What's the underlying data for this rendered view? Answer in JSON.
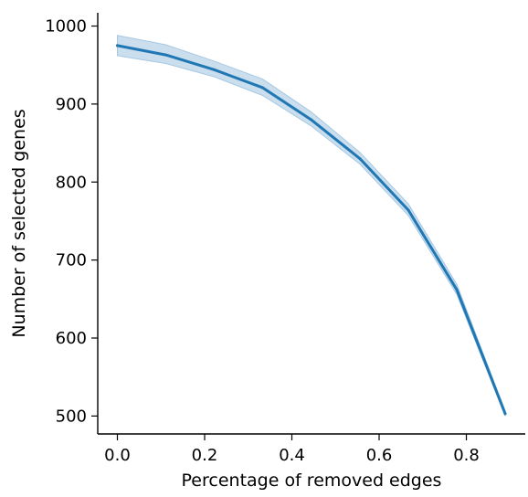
{
  "chart_data": {
    "type": "line",
    "title": "",
    "xlabel": "Percentage of removed edges",
    "ylabel": "Number of selected genes",
    "xlim": [
      -0.045,
      0.935
    ],
    "ylim": [
      477,
      1017
    ],
    "x_ticks": [
      0.0,
      0.2,
      0.4,
      0.6,
      0.8
    ],
    "x_tick_labels": [
      "0.0",
      "0.2",
      "0.4",
      "0.6",
      "0.8"
    ],
    "y_ticks": [
      500,
      600,
      700,
      800,
      900,
      1000
    ],
    "y_tick_labels": [
      "500",
      "600",
      "700",
      "800",
      "900",
      "1000"
    ],
    "grid": false,
    "legend": "none",
    "series": [
      {
        "x": [
          0.0,
          0.111,
          0.222,
          0.333,
          0.444,
          0.556,
          0.667,
          0.778,
          0.889
        ],
        "y": [
          975,
          963,
          944,
          921,
          880,
          830,
          764,
          662,
          503
        ],
        "ci_lower": [
          962,
          952,
          935,
          911,
          872,
          823,
          757,
          656,
          500
        ],
        "ci_upper": [
          988,
          976,
          955,
          932,
          890,
          838,
          772,
          669,
          506
        ],
        "color": "#1f77b4",
        "band_color": "#a6c8e3"
      }
    ]
  }
}
